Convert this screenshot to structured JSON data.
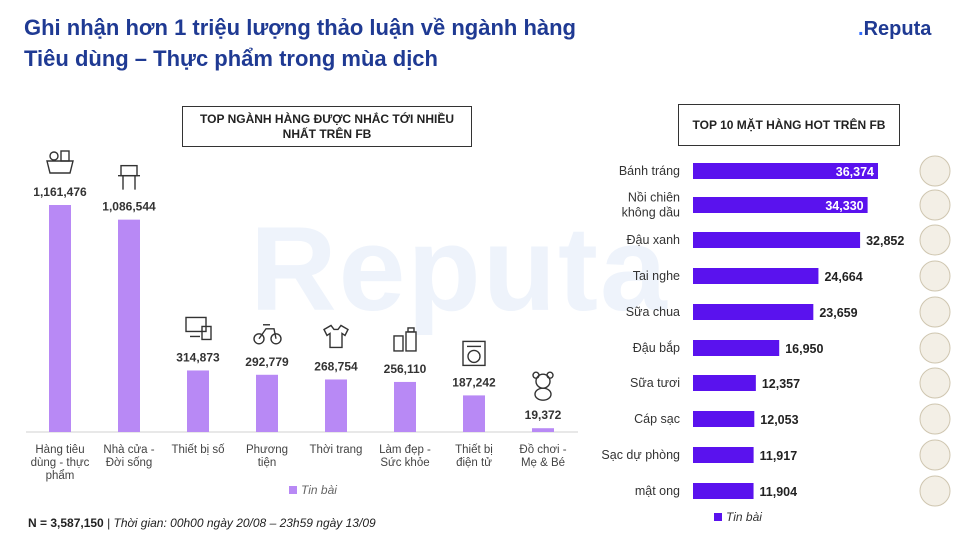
{
  "header": {
    "title_line1": "Ghi nhận hơn 1 triệu lượng thảo luận về ngành hàng",
    "title_line2": "Tiêu dùng – Thực phẩm trong mùa dịch",
    "logo": "Reputa",
    "watermark": "Reputa"
  },
  "footer": {
    "n_text": "N = 3,587,150",
    "separator": " | ",
    "time_text": "Thời gian: 00h00 ngày 20/08 – 23h59 ngày 13/09"
  },
  "colors": {
    "title": "#1f3a93",
    "left_bar": "#b889f5",
    "right_bar": "#5a12ee"
  },
  "chart_data": [
    {
      "type": "bar",
      "title": "TOP NGÀNH HÀNG ĐƯỢC NHẮC TỚI NHIỀU NHẤT TRÊN FB",
      "categories": [
        "Hàng tiêu dùng - thực phẩm",
        "Nhà cửa - Đời sống",
        "Thiết bị số",
        "Phương tiện",
        "Thời trang",
        "Làm đẹp - Sức khỏe",
        "Thiết bị điện tử",
        "Đồ chơi - Mẹ & Bé"
      ],
      "category_lines": [
        [
          "Hàng tiêu",
          "dùng - thực",
          "phẩm"
        ],
        [
          "Nhà cửa -",
          "Đời sống"
        ],
        [
          "Thiết bị số"
        ],
        [
          "Phương",
          "tiện"
        ],
        [
          "Thời trang"
        ],
        [
          "Làm đẹp -",
          "Sức khỏe"
        ],
        [
          "Thiết bị",
          "điện tử"
        ],
        [
          "Đồ chơi -",
          "Mẹ & Bé"
        ]
      ],
      "icons": [
        "grocery-basket-icon",
        "household-icon",
        "computer-devices-icon",
        "motorbike-icon",
        "clothing-icon",
        "cosmetics-icon",
        "appliance-icon",
        "teddy-bear-icon"
      ],
      "series": [
        {
          "name": "Tin bài",
          "values": [
            1161476,
            1086544,
            314873,
            292779,
            268754,
            256110,
            187242,
            19372
          ]
        }
      ],
      "value_labels": [
        "1,161,476",
        "1,086,544",
        "314,873",
        "292,779",
        "268,754",
        "256,110",
        "187,242",
        "19,372"
      ],
      "ylim": [
        0,
        1200000
      ],
      "legend": "bottom",
      "grid": false
    },
    {
      "type": "bar",
      "orientation": "horizontal",
      "title": "TOP 10 MẶT HÀNG HOT TRÊN FB",
      "categories": [
        "Bánh tráng",
        "Nồi chiên không dầu",
        "Đậu xanh",
        "Tai nghe",
        "Sữa chua",
        "Đậu bắp",
        "Sữa tươi",
        "Cáp sạc",
        "Sạc dự phòng",
        "mật ong"
      ],
      "category_lines": [
        [
          "Bánh tráng"
        ],
        [
          "Nồi chiên",
          "không dầu"
        ],
        [
          "Đậu xanh"
        ],
        [
          "Tai nghe"
        ],
        [
          "Sữa chua"
        ],
        [
          "Đậu bắp"
        ],
        [
          "Sữa tươi"
        ],
        [
          "Cáp sạc"
        ],
        [
          "Sạc dự phòng"
        ],
        [
          "mật ong"
        ]
      ],
      "icons": [
        "rice-paper-icon",
        "air-fryer-icon",
        "mung-bean-icon",
        "headphone-icon",
        "yogurt-icon",
        "okra-icon",
        "milk-icon",
        "charging-cable-icon",
        "power-bank-icon",
        "honey-icon"
      ],
      "series": [
        {
          "name": "Tin bài",
          "values": [
            36374,
            34330,
            32852,
            24664,
            23659,
            16950,
            12357,
            12053,
            11917,
            11904
          ]
        }
      ],
      "value_labels": [
        "36,374",
        "34,330",
        "32,852",
        "24,664",
        "23,659",
        "16,950",
        "12,357",
        "12,053",
        "11,917",
        "11,904"
      ],
      "xlim": [
        0,
        40000
      ],
      "legend": "bottom",
      "grid": false
    }
  ]
}
